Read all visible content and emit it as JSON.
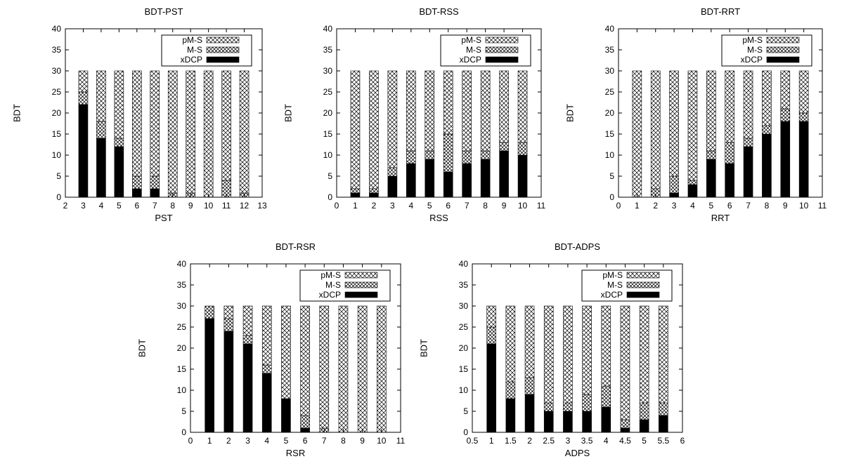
{
  "figure": {
    "series_names": [
      "pM-S",
      "M-S",
      "xDCP"
    ]
  },
  "chart_data": [
    {
      "type": "bar",
      "stacked": true,
      "title": "BDT-PST",
      "xlabel": "PST",
      "ylabel": "BDT",
      "xlim": [
        2,
        13
      ],
      "ylim": [
        0,
        40
      ],
      "xticks": [
        2,
        3,
        4,
        5,
        6,
        7,
        8,
        9,
        10,
        11,
        12,
        13
      ],
      "yticks": [
        0,
        5,
        10,
        15,
        20,
        25,
        30,
        35,
        40
      ],
      "x": [
        3,
        4,
        5,
        6,
        7,
        8,
        9,
        10,
        11,
        12
      ],
      "series": [
        {
          "name": "xDCP",
          "values": [
            22,
            14,
            12,
            2,
            2,
            0,
            0,
            0,
            0,
            0
          ]
        },
        {
          "name": "M-S",
          "values": [
            3,
            4,
            2,
            3,
            3,
            1,
            1,
            0,
            4,
            1
          ]
        },
        {
          "name": "pM-S",
          "values": [
            5,
            12,
            16,
            25,
            25,
            29,
            29,
            30,
            26,
            29
          ]
        }
      ],
      "legend": "top-right",
      "grid": false
    },
    {
      "type": "bar",
      "stacked": true,
      "title": "BDT-RSS",
      "xlabel": "RSS",
      "ylabel": "BDT",
      "xlim": [
        0,
        11
      ],
      "ylim": [
        0,
        40
      ],
      "xticks": [
        0,
        1,
        2,
        3,
        4,
        5,
        6,
        7,
        8,
        9,
        10,
        11
      ],
      "yticks": [
        0,
        5,
        10,
        15,
        20,
        25,
        30,
        35,
        40
      ],
      "x": [
        1,
        2,
        3,
        4,
        5,
        6,
        7,
        8,
        9,
        10
      ],
      "series": [
        {
          "name": "xDCP",
          "values": [
            1,
            1,
            5,
            8,
            9,
            6,
            8,
            9,
            11,
            10
          ]
        },
        {
          "name": "M-S",
          "values": [
            1,
            1,
            2,
            3,
            2,
            9,
            3,
            2,
            2,
            3
          ]
        },
        {
          "name": "pM-S",
          "values": [
            28,
            28,
            23,
            19,
            19,
            15,
            19,
            19,
            17,
            17
          ]
        }
      ],
      "legend": "top-right",
      "grid": false
    },
    {
      "type": "bar",
      "stacked": true,
      "title": "BDT-RRT",
      "xlabel": "RRT",
      "ylabel": "BDT",
      "xlim": [
        0,
        11
      ],
      "ylim": [
        0,
        40
      ],
      "xticks": [
        0,
        1,
        2,
        3,
        4,
        5,
        6,
        7,
        8,
        9,
        10,
        11
      ],
      "yticks": [
        0,
        5,
        10,
        15,
        20,
        25,
        30,
        35,
        40
      ],
      "x": [
        1,
        2,
        3,
        4,
        5,
        6,
        7,
        8,
        9,
        10
      ],
      "series": [
        {
          "name": "xDCP",
          "values": [
            0,
            0,
            1,
            3,
            9,
            8,
            12,
            15,
            18,
            18
          ]
        },
        {
          "name": "M-S",
          "values": [
            0,
            2,
            4,
            1,
            2,
            5,
            2,
            2,
            3,
            2
          ]
        },
        {
          "name": "pM-S",
          "values": [
            30,
            28,
            25,
            26,
            19,
            17,
            16,
            13,
            9,
            10
          ]
        }
      ],
      "legend": "top-right",
      "grid": false
    },
    {
      "type": "bar",
      "stacked": true,
      "title": "BDT-RSR",
      "xlabel": "RSR",
      "ylabel": "BDT",
      "xlim": [
        0,
        11
      ],
      "ylim": [
        0,
        40
      ],
      "xticks": [
        0,
        1,
        2,
        3,
        4,
        5,
        6,
        7,
        8,
        9,
        10,
        11
      ],
      "yticks": [
        0,
        5,
        10,
        15,
        20,
        25,
        30,
        35,
        40
      ],
      "x": [
        1,
        2,
        3,
        4,
        5,
        6,
        7,
        8,
        9,
        10
      ],
      "series": [
        {
          "name": "xDCP",
          "values": [
            27,
            24,
            21,
            14,
            8,
            1,
            0,
            0,
            0,
            0
          ]
        },
        {
          "name": "M-S",
          "values": [
            3,
            3,
            2,
            2,
            0,
            3,
            1,
            0,
            0,
            0
          ]
        },
        {
          "name": "pM-S",
          "values": [
            0,
            3,
            7,
            14,
            22,
            26,
            29,
            30,
            30,
            30
          ]
        }
      ],
      "legend": "top-right",
      "grid": false
    },
    {
      "type": "bar",
      "stacked": true,
      "title": "BDT-ADPS",
      "xlabel": "ADPS",
      "ylabel": "BDT",
      "xlim": [
        0.5,
        6
      ],
      "ylim": [
        0,
        40
      ],
      "xticks": [
        "0.5",
        "1",
        "1.5",
        "2",
        "2.5",
        "3",
        "3.5",
        "4",
        "4.5",
        "5",
        "5.5",
        "6"
      ],
      "yticks": [
        0,
        5,
        10,
        15,
        20,
        25,
        30,
        35,
        40
      ],
      "x": [
        1,
        1.5,
        2,
        2.5,
        3,
        3.5,
        4,
        4.5,
        5,
        5.5
      ],
      "series": [
        {
          "name": "xDCP",
          "values": [
            21,
            8,
            9,
            5,
            5,
            5,
            6,
            1,
            3,
            4
          ]
        },
        {
          "name": "M-S",
          "values": [
            4,
            4,
            4,
            2,
            2,
            4,
            5,
            2,
            4,
            3
          ]
        },
        {
          "name": "pM-S",
          "values": [
            5,
            18,
            17,
            23,
            23,
            21,
            19,
            27,
            23,
            23
          ]
        }
      ],
      "legend": "top-right",
      "grid": false
    }
  ]
}
